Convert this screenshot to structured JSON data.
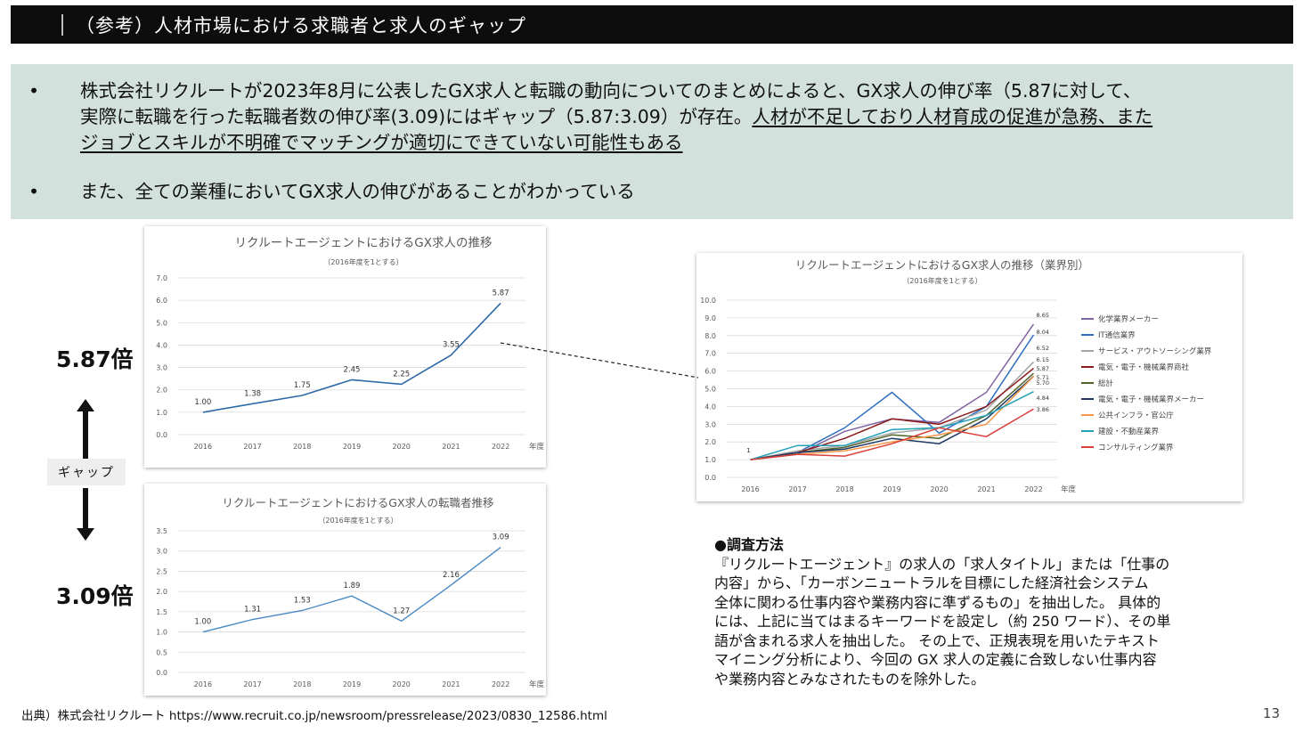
{
  "header": {
    "title": "（参考）人材市場における求職者と求人のギャップ"
  },
  "summary": {
    "bullet_char": "•",
    "bullet1_line1": "株式会社リクルートが2023年8月に公表したGX求人と転職の動向についてのまとめによると、GX求人の伸び率（5.87に対して、",
    "bullet1_line2_plain": "実際に転職を行った転職者数の伸び率(3.09)にはギャップ（5.87:3.09）が存在。",
    "bullet1_line2_underline": "人材が不足しており人材育成の促進が急務、また",
    "bullet1_line3_underline": "ジョブとスキルが不明確でマッチングが適切にできていない可能性もある",
    "bullet2": "また、全ての業種においてGX求人の伸びがあることがわかっている"
  },
  "comparison": {
    "top_value": "5.87倍",
    "gap_label": "ギャップ",
    "bottom_value": "3.09倍"
  },
  "method": {
    "heading": "●調査方法",
    "line1": "『リクルートエージェント』の求人の「求人タイトル」または「仕事の",
    "line2": "内容」から、「カーボンニュートラルを目標にした経済社会システム",
    "line3": "全体に関わる仕事内容や業務内容に準ずるもの」を抽出した。 具体的",
    "line4": "には、上記に当てはまるキーワードを設定し（約 250 ワード）、その単",
    "line5": "語が含まれる求人を抽出した。 その上で、正規表現を用いたテキスト",
    "line6": "マイニング分析により、今回の GX 求人の定義に合致しない仕事内容",
    "line7": "や業務内容とみなされたものを除外した。"
  },
  "footer": {
    "source": "出典）株式会社リクルート https://www.recruit.co.jp/newsroom/pressrelease/2023/0830_12586.html",
    "page_number": "13"
  },
  "chart_data": [
    {
      "type": "line",
      "title": "リクルートエージェントにおけるGX求人の推移",
      "subtitle": "（2016年度を1とする）",
      "xlabel": "年度",
      "ylabel": "",
      "categories": [
        "2016",
        "2017",
        "2018",
        "2019",
        "2020",
        "2021",
        "2022"
      ],
      "series": [
        {
          "values": [
            1.0,
            1.38,
            1.75,
            2.45,
            2.25,
            3.55,
            5.87
          ],
          "color": "#2e6aa8"
        }
      ],
      "data_labels": [
        "1.00",
        "1.38",
        "1.75",
        "2.45",
        "2.25",
        "3.55",
        "5.87"
      ],
      "ylim": [
        0,
        7
      ],
      "yticks": [
        "0.0",
        "1.0",
        "2.0",
        "3.0",
        "4.0",
        "5.0",
        "6.0",
        "7.0"
      ],
      "grid": true
    },
    {
      "type": "line",
      "title": "リクルートエージェントにおけるGX求人の転職者推移",
      "subtitle": "（2016年度を1とする）",
      "xlabel": "年度",
      "ylabel": "",
      "categories": [
        "2016",
        "2017",
        "2018",
        "2019",
        "2020",
        "2021",
        "2022"
      ],
      "series": [
        {
          "values": [
            1.0,
            1.31,
            1.53,
            1.89,
            1.27,
            2.16,
            3.09
          ],
          "color": "#4a8ac4"
        }
      ],
      "data_labels": [
        "1.00",
        "1.31",
        "1.53",
        "1.89",
        "1.27",
        "2.16",
        "3.09"
      ],
      "ylim": [
        0,
        3.5
      ],
      "yticks": [
        "0.0",
        "0.5",
        "1.0",
        "1.5",
        "2.0",
        "2.5",
        "3.0",
        "3.5"
      ],
      "grid": true
    },
    {
      "type": "line",
      "title": "リクルートエージェントにおけるGX求人の推移（業界別）",
      "subtitle": "（2016年度を1とする）",
      "xlabel": "年度",
      "ylabel": "",
      "categories": [
        "2016",
        "2017",
        "2018",
        "2019",
        "2020",
        "2021",
        "2022"
      ],
      "ylim": [
        0,
        10
      ],
      "yticks": [
        "0.0",
        "1.0",
        "2.0",
        "3.0",
        "4.0",
        "5.0",
        "6.0",
        "7.0",
        "8.0",
        "9.0",
        "10.0"
      ],
      "grid": true,
      "legend_position": "right",
      "start_label": "1",
      "series": [
        {
          "name": "化学業界メーカー",
          "color": "#8064a2",
          "values": [
            1.0,
            1.3,
            2.6,
            3.3,
            3.1,
            4.8,
            8.65
          ],
          "end_label": "8.65"
        },
        {
          "name": "IT通信業界",
          "color": "#2f6fc0",
          "values": [
            1.0,
            1.4,
            2.8,
            4.8,
            2.5,
            4.0,
            8.04
          ],
          "end_label": "8.04"
        },
        {
          "name": "サービス・アウトソーシング業界",
          "color": "#a5a5a5",
          "values": [
            1.0,
            1.5,
            1.8,
            2.5,
            2.8,
            3.8,
            6.52
          ],
          "end_label": "6.52"
        },
        {
          "name": "電気・電子・機械業界商社",
          "color": "#8b1a1a",
          "values": [
            1.0,
            1.4,
            2.2,
            3.3,
            3.0,
            4.0,
            6.15
          ],
          "end_label": "6.15"
        },
        {
          "name": "総計",
          "color": "#4f6228",
          "values": [
            1.0,
            1.4,
            1.7,
            2.4,
            2.2,
            3.5,
            5.87
          ],
          "end_label": "5.87"
        },
        {
          "name": "電気・電子・機械業界メーカー",
          "color": "#1f3864",
          "values": [
            1.0,
            1.4,
            1.6,
            2.2,
            1.9,
            3.3,
            5.71
          ],
          "end_label": "5.71"
        },
        {
          "name": "公共インフラ・官公庁",
          "color": "#f79646",
          "values": [
            1.0,
            1.3,
            1.5,
            2.0,
            2.4,
            3.0,
            5.7
          ],
          "end_label": "5.70"
        },
        {
          "name": "建設・不動産業界",
          "color": "#23a2b8",
          "values": [
            1.0,
            1.8,
            1.8,
            2.7,
            2.8,
            3.5,
            4.84
          ],
          "end_label": "4.84"
        },
        {
          "name": "コンサルティング業界",
          "color": "#d9403a",
          "values": [
            1.0,
            1.3,
            1.2,
            1.9,
            2.8,
            2.3,
            3.86
          ],
          "end_label": "3.86"
        }
      ]
    }
  ],
  "colors": {
    "title_bar": "#0d0d0d",
    "summary_bg": "#d3e1dd",
    "axis_text": "#595959",
    "grid": "#d9d9d9"
  }
}
